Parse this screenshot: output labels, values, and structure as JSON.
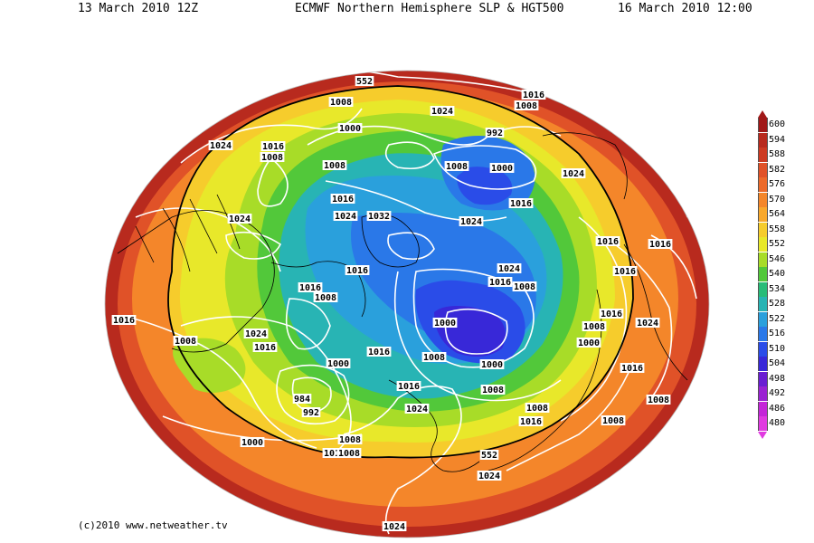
{
  "header": {
    "left": "13 March 2010 12Z",
    "center": "ECMWF Northern Hemisphere SLP & HGT500",
    "right": "16 March 2010 12:00"
  },
  "footer": "(c)2010  www.netweather.tv",
  "legend": {
    "unit_note": "",
    "entries": [
      {
        "label": "600",
        "color": "#a01818"
      },
      {
        "label": "594",
        "color": "#b82a1e"
      },
      {
        "label": "588",
        "color": "#cc3a22"
      },
      {
        "label": "582",
        "color": "#e05228"
      },
      {
        "label": "576",
        "color": "#ec6a2a"
      },
      {
        "label": "570",
        "color": "#f4862a"
      },
      {
        "label": "564",
        "color": "#f8a82c"
      },
      {
        "label": "558",
        "color": "#f6cc2c"
      },
      {
        "label": "552",
        "color": "#e8e82a"
      },
      {
        "label": "546",
        "color": "#a8dc28"
      },
      {
        "label": "540",
        "color": "#52c83a"
      },
      {
        "label": "534",
        "color": "#28bc78"
      },
      {
        "label": "528",
        "color": "#28b4b4"
      },
      {
        "label": "522",
        "color": "#2aa0dc"
      },
      {
        "label": "516",
        "color": "#2a78e8"
      },
      {
        "label": "510",
        "color": "#2a4ce8"
      },
      {
        "label": "504",
        "color": "#3828d8"
      },
      {
        "label": "498",
        "color": "#6a1ed2"
      },
      {
        "label": "492",
        "color": "#9a22d2"
      },
      {
        "label": "486",
        "color": "#c426d8"
      },
      {
        "label": "480",
        "color": "#e03ae0"
      }
    ]
  },
  "map": {
    "projection": "polar-stereographic",
    "fields": [
      "sea-level-pressure-isobars",
      "500hPa-geopotential-height"
    ],
    "isobar_labels": [
      "552",
      "1008",
      "1000",
      "1024",
      "1016",
      "1008",
      "992",
      "1000",
      "1024",
      "1024",
      "1016",
      "1008",
      "1008",
      "1016",
      "1024",
      "1032",
      "1016",
      "1024",
      "1024",
      "1016",
      "1016",
      "1008",
      "1024",
      "1016",
      "1008",
      "1016",
      "1016",
      "1016",
      "1008",
      "1016",
      "1000",
      "1008",
      "1024",
      "1016",
      "1000",
      "1024",
      "1008",
      "1016",
      "1008",
      "1016",
      "1000",
      "984",
      "992",
      "1016",
      "1024",
      "1000",
      "1008",
      "1016",
      "1008",
      "1008",
      "1016",
      "1008",
      "1016",
      "1000",
      "1008",
      "1008",
      "552",
      "1024",
      "1024"
    ]
  }
}
